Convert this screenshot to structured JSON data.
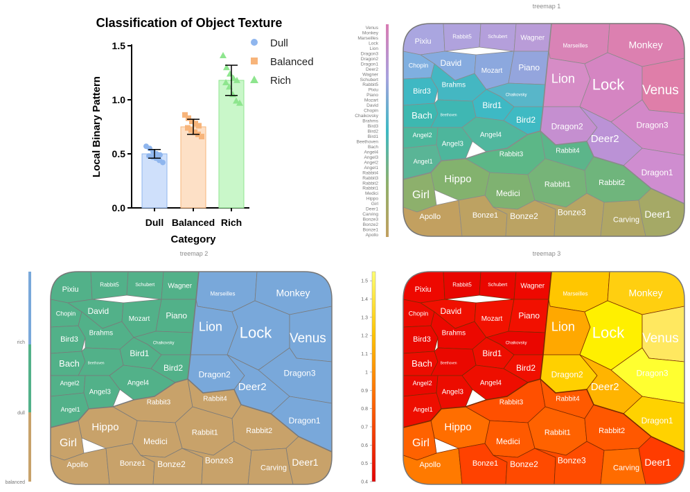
{
  "chart_data": [
    {
      "type": "bar",
      "title": "Classification of Object Texture",
      "xlabel": "Category",
      "ylabel": "Local Binary Pattern",
      "categories": [
        "Dull",
        "Balanced",
        "Rich"
      ],
      "values": [
        0.5,
        0.75,
        1.18
      ],
      "errors": [
        0.04,
        0.07,
        0.14
      ],
      "ylim": [
        0,
        1.5
      ],
      "yticks": [
        "0.0",
        "0.5",
        "1.0",
        "1.5"
      ],
      "legend": [
        "Dull",
        "Balanced",
        "Rich"
      ],
      "legend_position": "top-right",
      "points": [
        [
          0.57,
          0.55,
          0.52,
          0.5,
          0.49,
          0.48,
          0.47,
          0.46,
          0.44,
          0.42
        ],
        [
          0.86,
          0.83,
          0.8,
          0.78,
          0.76,
          0.74,
          0.72,
          0.7,
          0.68,
          0.66
        ],
        [
          1.41,
          1.3,
          1.24,
          1.2,
          1.18,
          1.16,
          1.12,
          1.05,
          0.99,
          0.97
        ]
      ],
      "colors": {
        "Dull": {
          "fill": "#cfe0fb",
          "edge": "#8fb6ee",
          "marker": "#8fb6ee"
        },
        "Balanced": {
          "fill": "#fde0c6",
          "edge": "#f7b47a",
          "marker": "#f7b47a"
        },
        "Rich": {
          "fill": "#c9f7c9",
          "edge": "#8ee58e",
          "marker": "#8ee58e"
        }
      }
    },
    {
      "type": "treemap",
      "title": "treemap 1",
      "color_scale_labels": [
        "Venus",
        "Monkey",
        "Marseilles",
        "Lock",
        "Lion",
        "Dragon3",
        "Dragon2",
        "Dragon1",
        "Deer2",
        "Wagner",
        "Schubert",
        "Rabbit5",
        "Pixiu",
        "Piano",
        "Mozart",
        "David",
        "Chopin",
        "Chaikovsky",
        "Brahms",
        "Bird3",
        "Bird2",
        "Bird1",
        "Beethoven",
        "Bach",
        "Angel4",
        "Angel3",
        "Angel2",
        "Angel1",
        "Rabbit4",
        "Rabbit3",
        "Rabbit2",
        "Rabbit1",
        "Medici",
        "Hippo",
        "Girl",
        "Deer1",
        "Carving",
        "Bonze3",
        "Bonze2",
        "Bonze1",
        "Apollo"
      ],
      "color_scale_colors": [
        "#d97cb3",
        "#a7a1de",
        "#3db9c4",
        "#8fb06c",
        "#c2a060"
      ]
    },
    {
      "type": "treemap",
      "title": "treemap 2",
      "legend": [
        "rich",
        "dull",
        "balanced"
      ],
      "colors": {
        "rich": "#79a8da",
        "dull": "#52b189",
        "balanced": "#c8a26a"
      }
    },
    {
      "type": "treemap",
      "title": "treemap 3",
      "colorbar_ticks": [
        "0.4",
        "0.5",
        "0.6",
        "0.7",
        "0.8",
        "0.9",
        "1",
        "1.1",
        "1.2",
        "1.3",
        "1.4",
        "1.5"
      ],
      "colorbar_range": [
        0.4,
        1.55
      ]
    }
  ],
  "cells": {
    "Venus": "Venus",
    "Monkey": "Monkey",
    "Marseilles": "Marseilles",
    "Lock": "Lock",
    "Lion": "Lion",
    "Dragon3": "Dragon3",
    "Dragon2": "Dragon2",
    "Dragon1": "Dragon1",
    "Deer2": "Deer2",
    "Wagner": "Wagner",
    "Schubert": "Schubert",
    "Rabbit5": "Rabbit5",
    "Pixiu": "Pixiu",
    "Piano": "Piano",
    "Mozart": "Mozart",
    "David": "David",
    "Chopin": "Chopin",
    "Chaikovsky": "Chaikovsky",
    "Brahms": "Brahms",
    "Bird3": "Bird3",
    "Bird2": "Bird2",
    "Bird1": "Bird1",
    "Beethoven": "Beethoven",
    "Bach": "Bach",
    "Angel4": "Angel4",
    "Angel3": "Angel3",
    "Angel2": "Angel2",
    "Angel1": "Angel1",
    "Rabbit4": "Rabbit4",
    "Rabbit3": "Rabbit3",
    "Rabbit2": "Rabbit2",
    "Rabbit1": "Rabbit1",
    "Medici": "Medici",
    "Hippo": "Hippo",
    "Girl": "Girl",
    "Deer1": "Deer1",
    "Carving": "Carving",
    "Bonze3": "Bonze3",
    "Bonze2": "Bonze2",
    "Bonze1": "Bonze1",
    "Apollo": "Apollo"
  },
  "heat_colors": {
    "Venus": "#ffe860",
    "Monkey": "#ffcf10",
    "Marseilles": "#ffc600",
    "Lock": "#fff000",
    "Lion": "#ffa800",
    "Dragon3": "#ffff30",
    "Dragon2": "#ffd000",
    "Dragon1": "#ffd200",
    "Deer2": "#ffb400",
    "Wagner": "#ee0800",
    "Schubert": "#ea0600",
    "Rabbit5": "#e80600",
    "Pixiu": "#ee0800",
    "Piano": "#f21000",
    "Mozart": "#f21200",
    "David": "#f01000",
    "Chopin": "#ec0a00",
    "Chaikovsky": "#ea0600",
    "Brahms": "#ec0800",
    "Bird3": "#ea0800",
    "Bird2": "#f01000",
    "Bird1": "#ee0e00",
    "Beethoven": "#ea0800",
    "Bach": "#ec0c00",
    "Angel4": "#ee0e00",
    "Angel3": "#ec0c00",
    "Angel2": "#ea0800",
    "Angel1": "#ee0e00",
    "Rabbit4": "#ff5a00",
    "Rabbit3": "#ff5000",
    "Rabbit2": "#ff5800",
    "Rabbit1": "#ff6200",
    "Medici": "#ff5a00",
    "Hippo": "#ff6e00",
    "Girl": "#ff6200",
    "Deer1": "#ff3c00",
    "Carving": "#ff6c00",
    "Bonze3": "#ff4c00",
    "Bonze2": "#ff4a00",
    "Bonze1": "#ff4200",
    "Apollo": "#ff7a00"
  }
}
